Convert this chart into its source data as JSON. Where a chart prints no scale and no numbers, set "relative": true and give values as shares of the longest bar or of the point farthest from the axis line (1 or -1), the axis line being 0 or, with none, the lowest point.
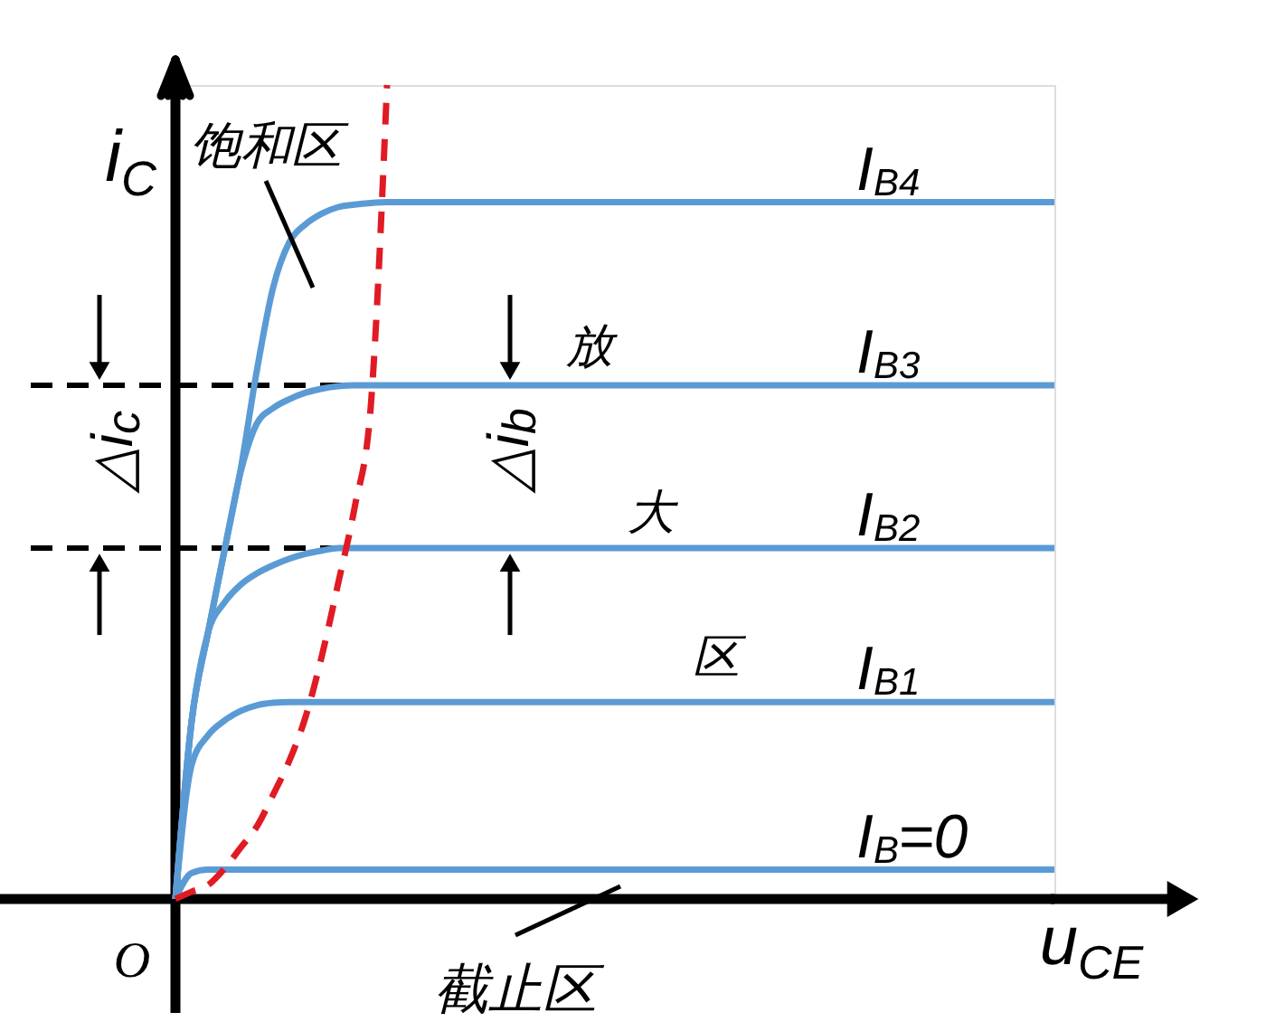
{
  "chart_data": {
    "type": "line",
    "relative": true,
    "xlabel": "u$_{CE}$",
    "ylabel": "i$_{C}$",
    "categories": [
      null,
      null,
      null,
      null,
      null,
      null,
      null,
      null,
      null,
      null,
      null,
      null,
      null,
      null,
      null,
      null,
      null,
      null,
      null,
      null,
      null,
      null,
      null,
      null,
      null,
      null,
      null,
      null,
      null,
      null,
      null,
      null,
      null,
      null,
      null,
      null,
      null,
      null,
      null,
      null,
      null,
      null,
      null,
      null,
      null,
      null,
      null,
      null,
      null,
      null,
      null,
      null,
      null,
      null,
      null
    ],
    "series": [
      {
        "name": "I$_{B4}$",
        "color": "#5b9bd5",
        "values": [
          0,
          0.219,
          0.327,
          0.427,
          0.527,
          0.649,
          0.751,
          0.807,
          0.829,
          0.842,
          0.85,
          0.853,
          0.855,
          0.856,
          0.856,
          0.856,
          0.856,
          0.856,
          0.856,
          0.856,
          0.856,
          0.856,
          0.856,
          0.856,
          0.856,
          0.856,
          0.856,
          0.856,
          0.856,
          0.856,
          0.856,
          0.856,
          0.856,
          0.856,
          0.856,
          0.856,
          0.856,
          0.856,
          0.856,
          0.856,
          0.856,
          0.856,
          0.856,
          0.856,
          0.856,
          0.856,
          0.856,
          0.856,
          0.856,
          0.856,
          0.856,
          0.856,
          0.856,
          0.856,
          0.856
        ]
      },
      {
        "name": "I$_{B3}$",
        "color": "#5b9bd5",
        "values": [
          0,
          0.219,
          0.327,
          0.427,
          0.524,
          0.584,
          0.603,
          0.614,
          0.622,
          0.627,
          0.63,
          0.631,
          0.631,
          0.631,
          0.631,
          0.631,
          0.631,
          0.631,
          0.631,
          0.631,
          0.631,
          0.631,
          0.631,
          0.631,
          0.631,
          0.631,
          0.631,
          0.631,
          0.631,
          0.631,
          0.631,
          0.631,
          0.631,
          0.631,
          0.631,
          0.631,
          0.631,
          0.631,
          0.631,
          0.631,
          0.631,
          0.631,
          0.631,
          0.631,
          0.631,
          0.631,
          0.631,
          0.631,
          0.631,
          0.631,
          0.631,
          0.631,
          0.631,
          0.631,
          0.631
        ]
      },
      {
        "name": "I$_{B2}$",
        "color": "#5b9bd5",
        "values": [
          0,
          0.219,
          0.327,
          0.364,
          0.386,
          0.4,
          0.41,
          0.418,
          0.424,
          0.428,
          0.431,
          0.431,
          0.431,
          0.431,
          0.431,
          0.431,
          0.431,
          0.431,
          0.431,
          0.431,
          0.431,
          0.431,
          0.431,
          0.431,
          0.431,
          0.431,
          0.431,
          0.431,
          0.431,
          0.431,
          0.431,
          0.431,
          0.431,
          0.431,
          0.431,
          0.431,
          0.431,
          0.431,
          0.431,
          0.431,
          0.431,
          0.431,
          0.431,
          0.431,
          0.431,
          0.431,
          0.431,
          0.431,
          0.431,
          0.431,
          0.431,
          0.431,
          0.431,
          0.431,
          0.431
        ]
      },
      {
        "name": "I$_{B1}$",
        "color": "#5b9bd5",
        "values": [
          0,
          0.165,
          0.201,
          0.219,
          0.231,
          0.238,
          0.241,
          0.242,
          0.242,
          0.242,
          0.242,
          0.242,
          0.242,
          0.242,
          0.242,
          0.242,
          0.242,
          0.242,
          0.242,
          0.242,
          0.242,
          0.242,
          0.242,
          0.242,
          0.242,
          0.242,
          0.242,
          0.242,
          0.242,
          0.242,
          0.242,
          0.242,
          0.242,
          0.242,
          0.242,
          0.242,
          0.242,
          0.242,
          0.242,
          0.242,
          0.242,
          0.242,
          0.242,
          0.242,
          0.242,
          0.242,
          0.242,
          0.242,
          0.242,
          0.242,
          0.242,
          0.242,
          0.242,
          0.242,
          0.242
        ]
      },
      {
        "name": "I$_{B}$=0",
        "color": "#5b9bd5",
        "values": [
          0,
          0.032,
          0.036,
          0.036,
          0.036,
          0.036,
          0.036,
          0.036,
          0.036,
          0.036,
          0.036,
          0.036,
          0.036,
          0.036,
          0.036,
          0.036,
          0.036,
          0.036,
          0.036,
          0.036,
          0.036,
          0.036,
          0.036,
          0.036,
          0.036,
          0.036,
          0.036,
          0.036,
          0.036,
          0.036,
          0.036,
          0.036,
          0.036,
          0.036,
          0.036,
          0.036,
          0.036,
          0.036,
          0.036,
          0.036,
          0.036,
          0.036,
          0.036,
          0.036,
          0.036,
          0.036,
          0.036,
          0.036,
          0.036,
          0.036,
          0.036,
          0.036,
          0.036,
          0.036,
          0.036
        ]
      },
      {
        "color": "#e01b24",
        "line_style": "dashed",
        "values": [
          0,
          0.009,
          0.017,
          0.037,
          0.063,
          0.089,
          0.128,
          0.17,
          0.224,
          0.299,
          0.388,
          0.48,
          0.605,
          1,
          null,
          null,
          null,
          null,
          null,
          null,
          null,
          null,
          null,
          null,
          null,
          null,
          null,
          null,
          null,
          null,
          null,
          null,
          null,
          null,
          null,
          null,
          null,
          null,
          null,
          null,
          null,
          null,
          null,
          null,
          null,
          null,
          null,
          null,
          null,
          null,
          null,
          null,
          null,
          null,
          null
        ]
      }
    ],
    "ref_lines": [
      {
        "axis": "y",
        "value": 0.631,
        "color": "#000000",
        "line_style": "dashed"
      },
      {
        "axis": "y",
        "value": 0.431,
        "color": "#000000",
        "line_style": "dashed"
      }
    ],
    "annotations": [
      "饱和区",
      "放",
      "大",
      "区",
      "截止区",
      "O",
      "△i$_{c}$",
      "△i$_{b}$"
    ]
  }
}
